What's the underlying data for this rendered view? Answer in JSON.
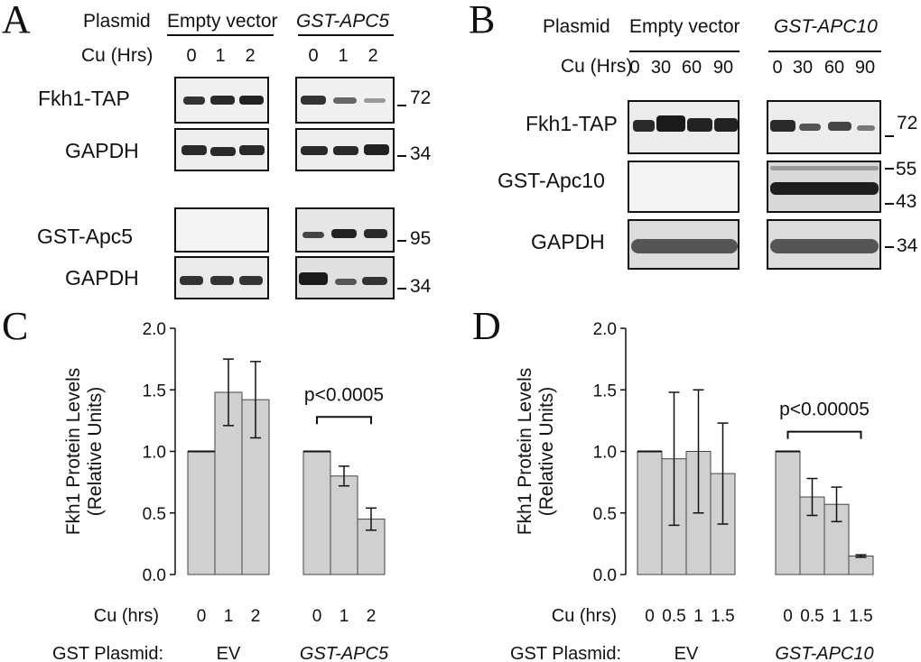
{
  "panelA": {
    "label": "A",
    "plasmid_label": "Plasmid",
    "cu_label": "Cu (Hrs)",
    "groups": [
      {
        "name": "Empty vector",
        "italic": false,
        "lanes": [
          "0",
          "1",
          "2"
        ]
      },
      {
        "name": "GST-APC5",
        "italic": true,
        "lanes": [
          "0",
          "1",
          "2"
        ]
      }
    ],
    "rows": [
      {
        "label": "Fkh1-TAP",
        "mw": "72"
      },
      {
        "label": "GAPDH",
        "mw": "34"
      },
      {
        "label": "GST-Apc5",
        "mw": "95"
      },
      {
        "label": "GAPDH",
        "mw": "34"
      }
    ]
  },
  "panelB": {
    "label": "B",
    "plasmid_label": "Plasmid",
    "cu_label": "Cu (Hrs)",
    "groups": [
      {
        "name": "Empty vector",
        "italic": false,
        "lanes": [
          "0",
          "30",
          "60",
          "90"
        ]
      },
      {
        "name": "GST-APC10",
        "italic": true,
        "lanes": [
          "0",
          "30",
          "60",
          "90"
        ]
      }
    ],
    "rows": [
      {
        "label": "Fkh1-TAP",
        "mw": "72"
      },
      {
        "label": "GST-Apc10",
        "mw_top": "55",
        "mw_bottom": "43"
      },
      {
        "label": "GAPDH",
        "mw": "34"
      }
    ]
  },
  "chart_data": [
    {
      "panel": "C",
      "type": "bar",
      "ylabel": "Fkh1 Protein Levels (Relative Units)",
      "ylim": [
        0,
        2.0
      ],
      "yticks": [
        "0.0",
        "0.5",
        "1.0",
        "1.5",
        "2.0"
      ],
      "x_row_label": "Cu (hrs)",
      "plasmid_row_label": "GST Plasmid:",
      "groups": [
        {
          "plasmid": "EV",
          "italic": false,
          "categories": [
            "0",
            "1",
            "2"
          ],
          "values": [
            1.0,
            1.48,
            1.42
          ],
          "errors": [
            0.0,
            0.27,
            0.31
          ]
        },
        {
          "plasmid": "GST-APC5",
          "italic": true,
          "categories": [
            "0",
            "1",
            "2"
          ],
          "values": [
            1.0,
            0.8,
            0.45
          ],
          "errors": [
            0.0,
            0.08,
            0.09
          ]
        }
      ],
      "annotation": "p<0.0005"
    },
    {
      "panel": "D",
      "type": "bar",
      "ylabel": "Fkh1 Protein Levels (Relative Units)",
      "ylim": [
        0,
        2.0
      ],
      "yticks": [
        "0.0",
        "0.5",
        "1.0",
        "1.5",
        "2.0"
      ],
      "x_row_label": "Cu (hrs)",
      "plasmid_row_label": "GST Plasmid:",
      "groups": [
        {
          "plasmid": "EV",
          "italic": false,
          "categories": [
            "0",
            "0.5",
            "1",
            "1.5"
          ],
          "values": [
            1.0,
            0.94,
            1.0,
            0.82
          ],
          "errors": [
            0.0,
            0.54,
            0.5,
            0.41
          ]
        },
        {
          "plasmid": "GST-APC10",
          "italic": true,
          "categories": [
            "0",
            "0.5",
            "1",
            "1.5"
          ],
          "values": [
            1.0,
            0.63,
            0.57,
            0.15
          ],
          "errors": [
            0.0,
            0.15,
            0.14,
            0.01
          ]
        }
      ],
      "annotation": "p<0.00005"
    }
  ],
  "colors": {
    "bar_fill": "#d0d0d0",
    "ink": "#111111",
    "blot_bg": "#f2f2f2",
    "band_dark": "#262626"
  }
}
